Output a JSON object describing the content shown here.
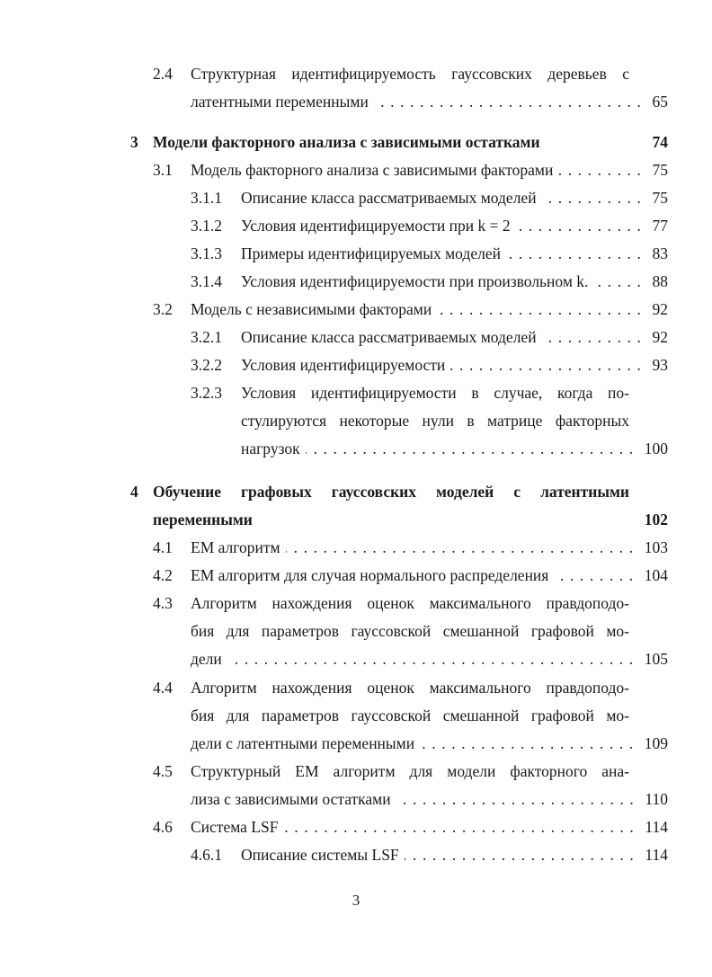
{
  "toc": [
    {
      "level": 2,
      "num": "2.4",
      "lines": [
        "Структурная идентифицируемость гауссовских деревьев с",
        "латентными переменными"
      ],
      "page": "65"
    },
    {
      "level": 1,
      "num": "3",
      "lines": [
        "Модели факторного анализа с зависимыми остатками"
      ],
      "page": "74"
    },
    {
      "level": 2,
      "num": "3.1",
      "lines": [
        "Модель факторного анализа с зависимыми факторами"
      ],
      "page": "75"
    },
    {
      "level": 3,
      "num": "3.1.1",
      "lines": [
        "Описание класса рассматриваемых моделей"
      ],
      "page": "75"
    },
    {
      "level": 3,
      "num": "3.1.2",
      "lines": [
        "Условия идентифицируемости при k = 2"
      ],
      "page": "77"
    },
    {
      "level": 3,
      "num": "3.1.3",
      "lines": [
        "Примеры идентифицируемых моделей"
      ],
      "page": "83"
    },
    {
      "level": 3,
      "num": "3.1.4",
      "lines": [
        "Условия идентифицируемости при произвольном k."
      ],
      "page": "88"
    },
    {
      "level": 2,
      "num": "3.2",
      "lines": [
        "Модель с независимыми факторами"
      ],
      "page": "92"
    },
    {
      "level": 3,
      "num": "3.2.1",
      "lines": [
        "Описание класса рассматриваемых моделей"
      ],
      "page": "92"
    },
    {
      "level": 3,
      "num": "3.2.2",
      "lines": [
        "Условия идентифицируемости"
      ],
      "page": "93"
    },
    {
      "level": 3,
      "num": "3.2.3",
      "lines": [
        "Условия идентифицируемости в случае, когда по-",
        "стулируются некоторые нули в матрице факторных",
        "нагрузок"
      ],
      "page": "100"
    },
    {
      "level": 1,
      "num": "4",
      "lines": [
        "Обучение графовых гауссовских моделей с латентными",
        "переменными"
      ],
      "page": "102"
    },
    {
      "level": 2,
      "num": "4.1",
      "lines": [
        "EM алгоритм"
      ],
      "page": "103"
    },
    {
      "level": 2,
      "num": "4.2",
      "lines": [
        "EM алгоритм для случая нормального распределения"
      ],
      "page": "104"
    },
    {
      "level": 2,
      "num": "4.3",
      "lines": [
        "Алгоритм нахождения оценок максимального правдоподо-",
        "бия для параметров гауссовской смешанной графовой мо-",
        "дели"
      ],
      "page": "105"
    },
    {
      "level": 2,
      "num": "4.4",
      "lines": [
        "Алгоритм нахождения оценок максимального правдоподо-",
        "бия для параметров гауссовской смешанной графовой мо-",
        "дели с латентными переменными"
      ],
      "page": "109"
    },
    {
      "level": 2,
      "num": "4.5",
      "lines": [
        "Структурный EM алгоритм для модели факторного ана-",
        "лиза с зависимыми остатками"
      ],
      "page": "110"
    },
    {
      "level": 2,
      "num": "4.6",
      "lines": [
        "Система LSF"
      ],
      "page": "114"
    },
    {
      "level": 3,
      "num": "4.6.1",
      "lines": [
        "Описание системы LSF"
      ],
      "page": "114"
    }
  ],
  "page_number": "3"
}
